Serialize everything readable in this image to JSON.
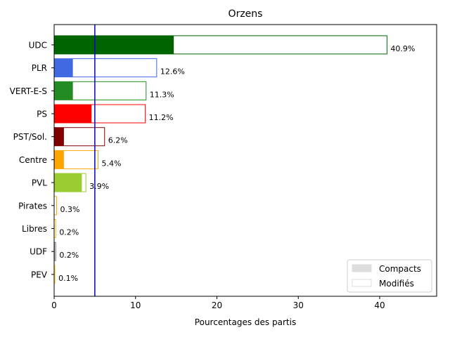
{
  "chart_data": {
    "type": "bar",
    "orientation": "horizontal",
    "title": "Orzens",
    "xlabel": "Pourcentages des partis",
    "ylabel": "",
    "xlim": [
      0,
      47
    ],
    "xticks": [
      0,
      10,
      20,
      30,
      40
    ],
    "threshold_line": {
      "x": 5,
      "color": "#0000cc"
    },
    "grid": false,
    "legend": {
      "position": "bottom-right",
      "entries": [
        {
          "label": "Compacts",
          "fill": "#dddddd",
          "stroke": "#dddddd"
        },
        {
          "label": "Modifiés",
          "fill": "#ffffff",
          "stroke": "#dddddd"
        }
      ]
    },
    "bars": [
      {
        "party": "UDC",
        "compact": 14.7,
        "total": 40.9,
        "label": "40.9%",
        "color": "#006400"
      },
      {
        "party": "PLR",
        "compact": 2.3,
        "total": 12.6,
        "label": "12.6%",
        "color": "#4169e1"
      },
      {
        "party": "VERT-E-S",
        "compact": 2.3,
        "total": 11.3,
        "label": "11.3%",
        "color": "#228b22"
      },
      {
        "party": "PS",
        "compact": 4.6,
        "total": 11.2,
        "label": "11.2%",
        "color": "#ff0000"
      },
      {
        "party": "PST/Sol.",
        "compact": 1.2,
        "total": 6.2,
        "label": "6.2%",
        "color": "#800000"
      },
      {
        "party": "Centre",
        "compact": 1.2,
        "total": 5.4,
        "label": "5.4%",
        "color": "#ffa500"
      },
      {
        "party": "PVL",
        "compact": 3.4,
        "total": 3.9,
        "label": "3.9%",
        "color": "#9acd32"
      },
      {
        "party": "Pirates",
        "compact": 0.0,
        "total": 0.3,
        "label": "0.3%",
        "color": "#ffa500"
      },
      {
        "party": "Libres",
        "compact": 0.0,
        "total": 0.2,
        "label": "0.2%",
        "color": "#ffc000"
      },
      {
        "party": "UDF",
        "compact": 0.1,
        "total": 0.2,
        "label": "0.2%",
        "color": "#808080"
      },
      {
        "party": "PEV",
        "compact": 0.0,
        "total": 0.1,
        "label": "0.1%",
        "color": "#ffd700"
      }
    ]
  }
}
